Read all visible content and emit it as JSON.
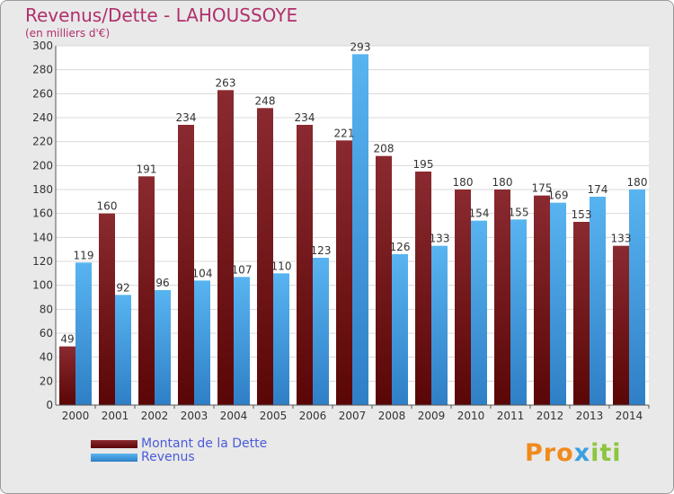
{
  "header": {
    "title": "Revenus/Dette - LAHOUSSOYE",
    "subtitle": "(en milliers d'€)"
  },
  "legend": {
    "debt_label": "Montant de la Dette",
    "revenue_label": "Revenus"
  },
  "logo": {
    "letters": [
      "P",
      "r",
      "o",
      "x",
      "i",
      "t",
      "i"
    ],
    "colors": [
      "#f08a1c",
      "#f08a1c",
      "#f08a1c",
      "#3aa0e0",
      "#8cc63f",
      "#8cc63f",
      "#8cc63f"
    ]
  },
  "colors": {
    "debt": "#7a1a1e",
    "revenue": "#4aa6e6",
    "title": "#b0306c"
  },
  "chart_data": {
    "type": "bar",
    "categories": [
      "2000",
      "2001",
      "2002",
      "2003",
      "2004",
      "2005",
      "2006",
      "2007",
      "2008",
      "2009",
      "2010",
      "2011",
      "2012",
      "2013",
      "2014"
    ],
    "series": [
      {
        "name": "Montant de la Dette",
        "values": [
          49,
          160,
          191,
          234,
          263,
          248,
          234,
          221,
          208,
          195,
          180,
          180,
          175,
          153,
          133
        ]
      },
      {
        "name": "Revenus",
        "values": [
          119,
          92,
          96,
          104,
          107,
          110,
          123,
          293,
          126,
          133,
          154,
          155,
          169,
          174,
          180
        ]
      }
    ],
    "title": "Revenus/Dette - LAHOUSSOYE",
    "ylabel": "(en milliers d'€)",
    "ylim": [
      0,
      300
    ],
    "yticks": [
      0,
      20,
      40,
      60,
      80,
      100,
      120,
      140,
      160,
      180,
      200,
      220,
      240,
      260,
      280,
      300
    ],
    "grid": true
  }
}
